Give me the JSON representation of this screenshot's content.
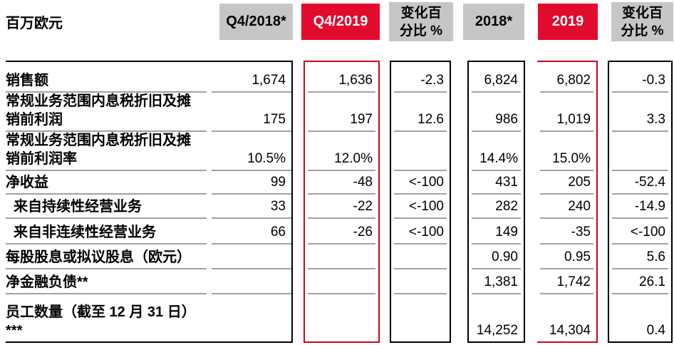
{
  "title": {
    "unit_label": "百万欧元"
  },
  "colors": {
    "header_gray": "#c6c6c6",
    "header_red": "#e30b2d",
    "header_red_text": "#ffffff",
    "border_red": "#c5081f",
    "border_black": "#000000",
    "separator_gray": "#a2a2a2"
  },
  "header": {
    "columns": [
      {
        "id": "q4-2018",
        "label": "Q4/2018*",
        "variant": "gray"
      },
      {
        "id": "q4-2019",
        "label": "Q4/2019",
        "variant": "red"
      },
      {
        "id": "chg-q4",
        "label": "变化百\n分比 %",
        "variant": "gray"
      },
      {
        "id": "fy-2018",
        "label": "2018*",
        "variant": "gray"
      },
      {
        "id": "fy-2019",
        "label": "2019",
        "variant": "red"
      },
      {
        "id": "chg-fy",
        "label": "变化百\n分比 %",
        "variant": "gray"
      }
    ]
  },
  "table": {
    "rows": [
      {
        "label": "销售额",
        "indent": false,
        "values": [
          "1,674",
          "1,636",
          "-2.3",
          "6,824",
          "6,802",
          "-0.3"
        ]
      },
      {
        "label": "常规业务范围内息税折旧及摊\n销前利润",
        "indent": false,
        "values": [
          "175",
          "197",
          "12.6",
          "986",
          "1,019",
          "3.3"
        ]
      },
      {
        "label": "常规业务范围内息税折旧及摊\n销前利润率",
        "indent": false,
        "values": [
          "10.5%",
          "12.0%",
          "",
          "14.4%",
          "15.0%",
          ""
        ]
      },
      {
        "label": "净收益",
        "indent": false,
        "values": [
          "99",
          "-48",
          "<-100",
          "431",
          "205",
          "-52.4"
        ]
      },
      {
        "label": "来自持续性经营业务",
        "indent": true,
        "values": [
          "33",
          "-22",
          "<-100",
          "282",
          "240",
          "-14.9"
        ]
      },
      {
        "label": "来自非连续性经营业务",
        "indent": true,
        "values": [
          "66",
          "-26",
          "<-100",
          "149",
          "-35",
          "<-100"
        ]
      },
      {
        "label": "每股股息或拟议股息（欧元）",
        "indent": false,
        "values": [
          "",
          "",
          "",
          "0.90",
          "0.95",
          "5.6"
        ]
      },
      {
        "label": "净金融负债**",
        "indent": false,
        "values": [
          "",
          "",
          "",
          "1,381",
          "1,742",
          "26.1"
        ]
      },
      {
        "label": "员工数量（截至 12 月 31 日）\n***",
        "indent": false,
        "values": [
          "",
          "",
          "",
          "14,252",
          "14,304",
          "0.4"
        ]
      }
    ]
  }
}
